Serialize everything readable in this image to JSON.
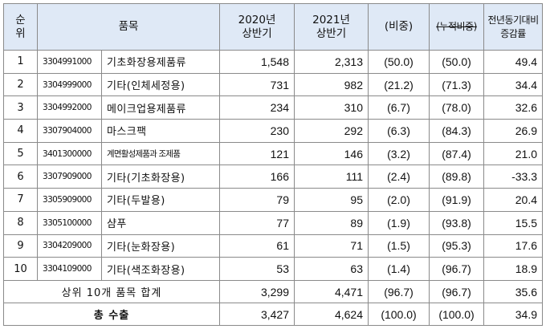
{
  "headers": {
    "rank": "순\n위",
    "item": "품목",
    "h2020": "2020년\n상반기",
    "h2021": "2021년\n상반기",
    "share": "(비중)",
    "cumshare": "(누적비중)",
    "growth": "전년동기대비\n증감률"
  },
  "rows": [
    {
      "rank": "1",
      "code": "3304991000",
      "name": "기초화장용제품류",
      "v2020": "1,548",
      "v2021": "2,313",
      "share": "(50.0)",
      "cum": "(50.0)",
      "growth": "49.4"
    },
    {
      "rank": "2",
      "code": "3304999000",
      "name": "기타(인체세정용)",
      "v2020": "731",
      "v2021": "982",
      "share": "(21.2)",
      "cum": "(71.3)",
      "growth": "34.4"
    },
    {
      "rank": "3",
      "code": "3304992000",
      "name": "메이크업용제품류",
      "v2020": "234",
      "v2021": "310",
      "share": "(6.7)",
      "cum": "(78.0)",
      "growth": "32.6"
    },
    {
      "rank": "4",
      "code": "3307904000",
      "name": "마스크팩",
      "v2020": "230",
      "v2021": "292",
      "share": "(6.3)",
      "cum": "(84.3)",
      "growth": "26.9"
    },
    {
      "rank": "5",
      "code": "3401300000",
      "name": "계면활성제품과 조제품",
      "v2020": "121",
      "v2021": "146",
      "share": "(3.2)",
      "cum": "(87.4)",
      "growth": "21.0"
    },
    {
      "rank": "6",
      "code": "3307909000",
      "name": "기타(기초화장용)",
      "v2020": "166",
      "v2021": "111",
      "share": "(2.4)",
      "cum": "(89.8)",
      "growth": "-33.3"
    },
    {
      "rank": "7",
      "code": "3305909000",
      "name": "기타(두발용)",
      "v2020": "79",
      "v2021": "95",
      "share": "(2.0)",
      "cum": "(91.9)",
      "growth": "20.4"
    },
    {
      "rank": "8",
      "code": "3305100000",
      "name": "샴푸",
      "v2020": "77",
      "v2021": "89",
      "share": "(1.9)",
      "cum": "(93.8)",
      "growth": "15.5"
    },
    {
      "rank": "9",
      "code": "3304209000",
      "name": "기타(눈화장용)",
      "v2020": "61",
      "v2021": "71",
      "share": "(1.5)",
      "cum": "(95.3)",
      "growth": "17.6"
    },
    {
      "rank": "10",
      "code": "3304109000",
      "name": "기타(색조화장용)",
      "v2020": "53",
      "v2021": "63",
      "share": "(1.4)",
      "cum": "(96.7)",
      "growth": "18.9"
    }
  ],
  "summary": {
    "label": "상위 10개 품목 합계",
    "v2020": "3,299",
    "v2021": "4,471",
    "share": "(96.7)",
    "cum": "(96.7)",
    "growth": "35.6"
  },
  "total": {
    "label": "총 수출",
    "v2020": "3,427",
    "v2021": "4,624",
    "share": "(100.0)",
    "cum": "(100.0)",
    "growth": "34.9"
  }
}
